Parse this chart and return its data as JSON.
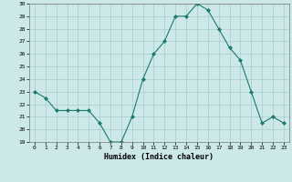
{
  "x": [
    0,
    1,
    2,
    3,
    4,
    5,
    6,
    7,
    8,
    9,
    10,
    11,
    12,
    13,
    14,
    15,
    16,
    17,
    18,
    19,
    20,
    21,
    22,
    23
  ],
  "y": [
    23.0,
    22.5,
    21.5,
    21.5,
    21.5,
    21.5,
    20.5,
    19.0,
    19.0,
    21.0,
    24.0,
    26.0,
    27.0,
    29.0,
    29.0,
    30.0,
    29.5,
    28.0,
    26.5,
    25.5,
    23.0,
    20.5,
    21.0,
    20.5
  ],
  "line_color": "#1a7a6e",
  "marker": "D",
  "marker_size": 2.0,
  "bg_color": "#cce8e8",
  "grid_color": "#aacccc",
  "xlabel": "Humidex (Indice chaleur)",
  "xlim": [
    -0.5,
    23.5
  ],
  "ylim": [
    19,
    30
  ],
  "yticks": [
    19,
    20,
    21,
    22,
    23,
    24,
    25,
    26,
    27,
    28,
    29,
    30
  ],
  "xticks": [
    0,
    1,
    2,
    3,
    4,
    5,
    6,
    7,
    8,
    9,
    10,
    11,
    12,
    13,
    14,
    15,
    16,
    17,
    18,
    19,
    20,
    21,
    22,
    23
  ]
}
